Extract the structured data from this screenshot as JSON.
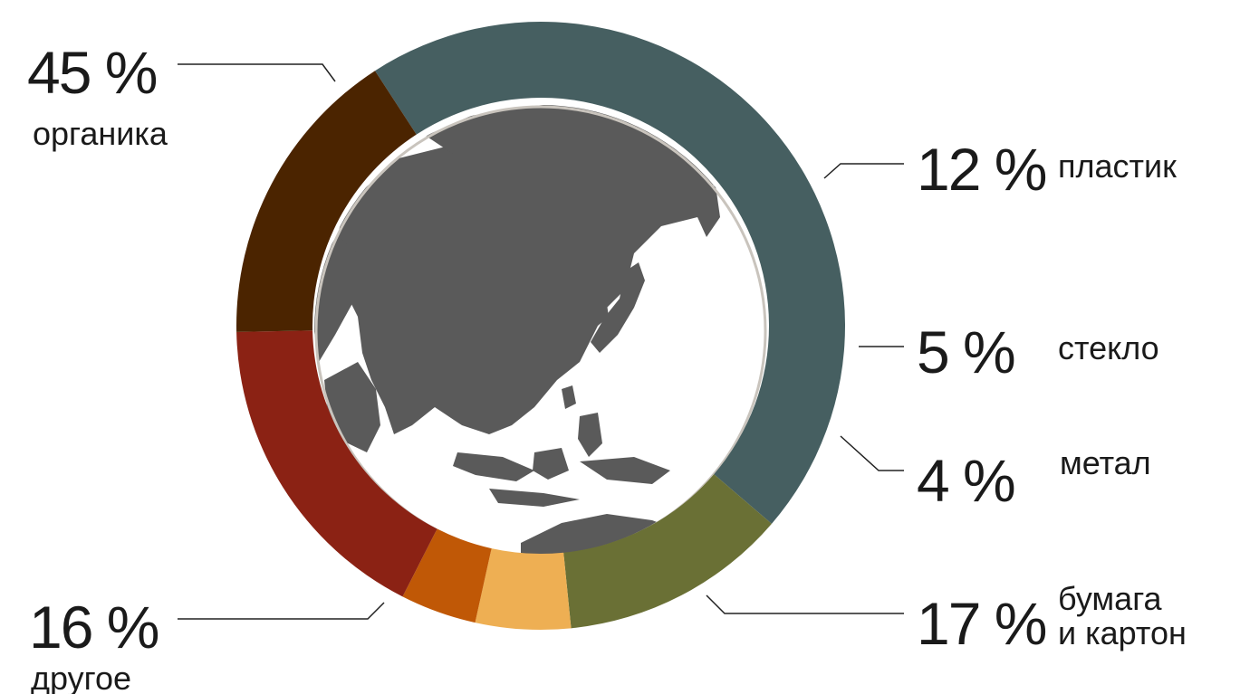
{
  "chart_data": {
    "type": "pie",
    "categories": [
      "органика",
      "пластик",
      "стекло",
      "метал",
      "бумага и картон",
      "другое"
    ],
    "values": [
      45,
      12,
      5,
      4,
      17,
      16
    ],
    "slices": [
      {
        "key": "organic",
        "pct_label": "45 %",
        "label_lines": [
          "органика"
        ],
        "value": 45,
        "color": "#465f61"
      },
      {
        "key": "plastic",
        "pct_label": "12 %",
        "label_lines": [
          "пластик"
        ],
        "value": 12,
        "color": "#6a7035"
      },
      {
        "key": "glass",
        "pct_label": "5 %",
        "label_lines": [
          "стекло"
        ],
        "value": 5,
        "color": "#eeaf53"
      },
      {
        "key": "metal",
        "pct_label": "4 %",
        "label_lines": [
          "метал"
        ],
        "value": 4,
        "color": "#c05806"
      },
      {
        "key": "paper",
        "pct_label": "17 %",
        "label_lines": [
          "бумага",
          "и картон"
        ],
        "value": 17,
        "color": "#8b2214"
      },
      {
        "key": "other",
        "pct_label": "16 %",
        "label_lines": [
          "другое"
        ],
        "value": 16,
        "color": "#4b2400"
      }
    ],
    "center_image": "globe-asia-pacific"
  }
}
